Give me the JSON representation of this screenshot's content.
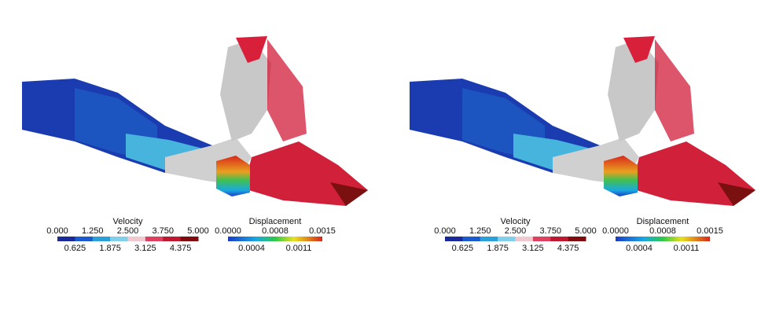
{
  "panels": [
    {
      "velocity": {
        "title": "Velocity",
        "ticks_top": [
          "0.000",
          "1.250",
          "2.500",
          "3.750",
          "5.000"
        ],
        "ticks_bottom": [
          "0.625",
          "1.875",
          "3.125",
          "4.375"
        ]
      },
      "displacement": {
        "title": "Displacement",
        "ticks_top": [
          "0.0000",
          "0.0008",
          "0.0015"
        ],
        "ticks_bottom": [
          "0.0004",
          "0.0011"
        ]
      }
    },
    {
      "velocity": {
        "title": "Velocity",
        "ticks_top": [
          "0.000",
          "1.250",
          "2.500",
          "3.750",
          "5.000"
        ],
        "ticks_bottom": [
          "0.625",
          "1.875",
          "3.125",
          "4.375"
        ]
      },
      "displacement": {
        "title": "Displacement",
        "ticks_top": [
          "0.0000",
          "0.0008",
          "0.0015"
        ],
        "ticks_bottom": [
          "0.0004",
          "0.0011"
        ]
      }
    }
  ]
}
